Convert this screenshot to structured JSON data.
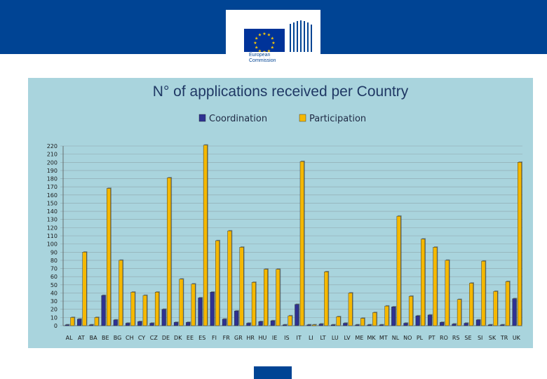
{
  "branding": {
    "logo_line1": "European",
    "logo_line2": "Commission",
    "colors": {
      "header": "#004494",
      "panel": "#a9d4dd",
      "flag_blue": "#003399",
      "flag_star": "#ffcc00"
    }
  },
  "chart_data": {
    "type": "bar",
    "title": "N° of applications received per Country",
    "xlabel": "",
    "ylabel": "",
    "ylim": [
      0,
      220
    ],
    "yticks": [
      0,
      10,
      20,
      30,
      40,
      50,
      60,
      70,
      80,
      90,
      100,
      110,
      120,
      130,
      140,
      150,
      160,
      170,
      180,
      190,
      200,
      210,
      220
    ],
    "grid": true,
    "legend_position": "top-center",
    "categories": [
      "AL",
      "AT",
      "BA",
      "BE",
      "BG",
      "CH",
      "CY",
      "CZ",
      "DE",
      "DK",
      "EE",
      "ES",
      "FI",
      "FR",
      "GR",
      "HR",
      "HU",
      "IE",
      "IS",
      "IT",
      "LI",
      "LT",
      "LU",
      "LV",
      "ME",
      "MK",
      "MT",
      "NL",
      "NO",
      "PL",
      "PT",
      "RO",
      "RS",
      "SE",
      "SI",
      "SK",
      "TR",
      "UK"
    ],
    "series": [
      {
        "name": "Coordination",
        "color": "#2e3192",
        "values": [
          1,
          8,
          1,
          37,
          7,
          3,
          5,
          3,
          20,
          4,
          4,
          34,
          41,
          8,
          18,
          3,
          5,
          6,
          1,
          26,
          1,
          2,
          1,
          3,
          1,
          1,
          1,
          23,
          3,
          12,
          13,
          4,
          2,
          3,
          7,
          1,
          1,
          33
        ]
      },
      {
        "name": "Participation",
        "color": "#f5b800",
        "values": [
          10,
          90,
          10,
          168,
          80,
          41,
          37,
          41,
          181,
          57,
          51,
          221,
          104,
          116,
          96,
          53,
          69,
          69,
          12,
          201,
          1,
          66,
          11,
          40,
          9,
          16,
          24,
          134,
          36,
          106,
          96,
          80,
          32,
          52,
          79,
          42,
          54,
          200
        ]
      }
    ]
  }
}
